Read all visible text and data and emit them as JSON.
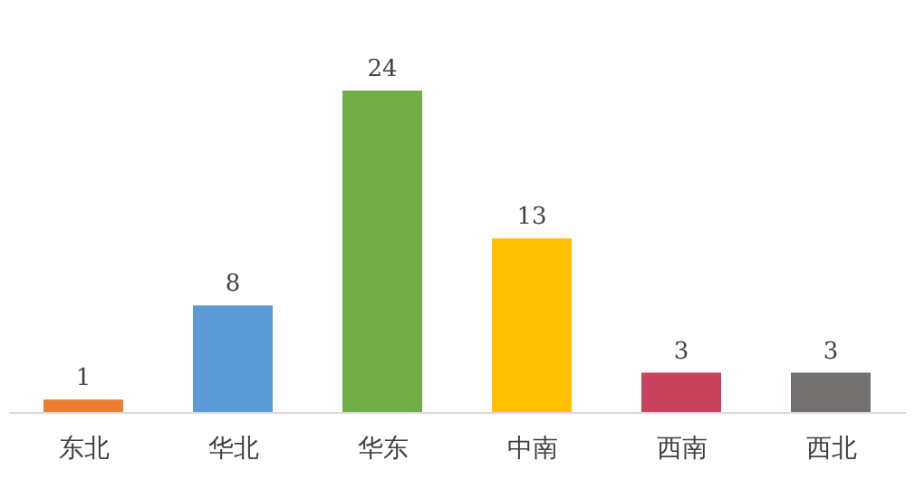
{
  "chart_data": {
    "type": "bar",
    "categories": [
      "东北",
      "华北",
      "华东",
      "中南",
      "西南",
      "西北"
    ],
    "values": [
      1,
      8,
      24,
      13,
      3,
      3
    ],
    "colors": [
      "#ed7d31",
      "#5b9bd5",
      "#70ad47",
      "#ffc000",
      "#c9435e",
      "#767171"
    ],
    "data_labels": true
  }
}
